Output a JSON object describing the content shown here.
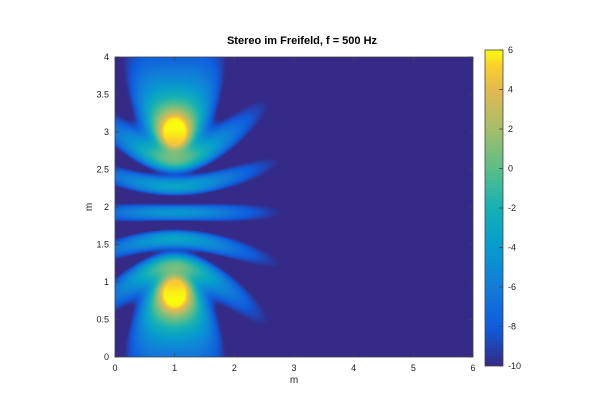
{
  "chart_data": {
    "type": "heatmap",
    "title": "Stereo im Freifeld, f = 500 Hz",
    "xlabel": "m",
    "ylabel": "m",
    "xlim": [
      0,
      6
    ],
    "ylim": [
      0,
      4
    ],
    "x_ticks": [
      0,
      1,
      2,
      3,
      4,
      5,
      6
    ],
    "y_ticks": [
      0,
      0.5,
      1,
      1.5,
      2,
      2.5,
      3,
      3.5,
      4
    ],
    "colorbar": {
      "range": [
        -10,
        6
      ],
      "ticks": [
        -10,
        -8,
        -6,
        -4,
        -2,
        0,
        2,
        4,
        6
      ],
      "colormap": "parula"
    },
    "sources": [
      {
        "x": 1.0,
        "y": 0.85,
        "label": ""
      },
      {
        "x": 1.0,
        "y": 3.0,
        "label": ""
      }
    ],
    "frequency_hz": 500,
    "value_range_observed": [
      -10,
      6
    ]
  },
  "colors": {
    "low": "#352a87",
    "mid": "#21b2a1",
    "high": "#f9fb0e"
  }
}
